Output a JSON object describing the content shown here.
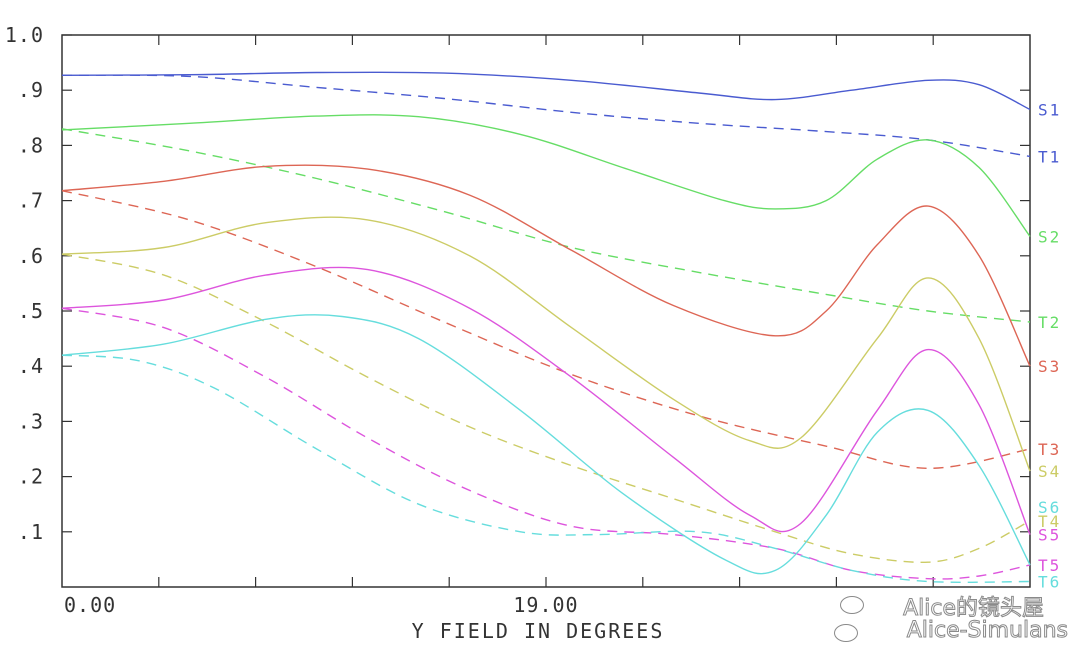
{
  "chart_data": {
    "type": "line",
    "title": "",
    "xlabel": "Y FIELD IN DEGREES",
    "ylabel": "",
    "xlim": [
      0,
      38
    ],
    "ylim": [
      0,
      1.0
    ],
    "x_ticks": [
      0,
      19
    ],
    "x_tick_labels": [
      "0.00",
      "19.00"
    ],
    "y_ticks": [
      0.1,
      0.2,
      0.3,
      0.4,
      0.5,
      0.6,
      0.7,
      0.8,
      0.9,
      1.0
    ],
    "y_tick_labels": [
      ".1",
      ".2",
      ".3",
      ".4",
      ".5",
      ".6",
      ".7",
      ".8",
      ".9",
      "1.0"
    ],
    "grid": false,
    "legend": "right-edge labels",
    "series": [
      {
        "name": "S1",
        "color": "#4a5bd0",
        "dash": false,
        "x": [
          0,
          5,
          10,
          15,
          20,
          25,
          28,
          31,
          34,
          36,
          38
        ],
        "values": [
          0.927,
          0.928,
          0.932,
          0.931,
          0.918,
          0.895,
          0.883,
          0.9,
          0.918,
          0.91,
          0.865
        ]
      },
      {
        "name": "T1",
        "color": "#4a5bd0",
        "dash": true,
        "x": [
          0,
          5,
          10,
          15,
          20,
          25,
          30,
          34,
          38
        ],
        "values": [
          0.927,
          0.925,
          0.905,
          0.885,
          0.86,
          0.84,
          0.825,
          0.81,
          0.78
        ]
      },
      {
        "name": "S2",
        "color": "#66dd66",
        "dash": false,
        "x": [
          0,
          5,
          10,
          14,
          18,
          22,
          26,
          28,
          30,
          32,
          34,
          36,
          38
        ],
        "values": [
          0.828,
          0.84,
          0.853,
          0.852,
          0.82,
          0.76,
          0.7,
          0.685,
          0.7,
          0.775,
          0.81,
          0.76,
          0.635
        ]
      },
      {
        "name": "T2",
        "color": "#66dd66",
        "dash": true,
        "x": [
          0,
          5,
          10,
          15,
          20,
          25,
          30,
          34,
          38
        ],
        "values": [
          0.83,
          0.79,
          0.74,
          0.68,
          0.615,
          0.57,
          0.53,
          0.5,
          0.48
        ]
      },
      {
        "name": "S3",
        "color": "#dd6655",
        "dash": false,
        "x": [
          0,
          4,
          8,
          12,
          16,
          20,
          24,
          28,
          30,
          32,
          34,
          36,
          38
        ],
        "values": [
          0.718,
          0.735,
          0.762,
          0.757,
          0.71,
          0.61,
          0.51,
          0.455,
          0.5,
          0.62,
          0.69,
          0.6,
          0.4
        ]
      },
      {
        "name": "T3",
        "color": "#dd6655",
        "dash": true,
        "x": [
          0,
          5,
          10,
          15,
          20,
          25,
          30,
          34,
          38
        ],
        "values": [
          0.718,
          0.665,
          0.58,
          0.48,
          0.385,
          0.31,
          0.255,
          0.215,
          0.25
        ]
      },
      {
        "name": "S4",
        "color": "#cccc66",
        "dash": false,
        "x": [
          0,
          4,
          8,
          12,
          16,
          20,
          24,
          27,
          29,
          32,
          34,
          36,
          38
        ],
        "values": [
          0.603,
          0.615,
          0.66,
          0.665,
          0.6,
          0.47,
          0.34,
          0.265,
          0.27,
          0.45,
          0.56,
          0.45,
          0.21
        ]
      },
      {
        "name": "T4",
        "color": "#cccc66",
        "dash": true,
        "x": [
          0,
          4,
          8,
          12,
          16,
          20,
          24,
          28,
          31,
          34,
          36,
          38
        ],
        "values": [
          0.603,
          0.565,
          0.48,
          0.38,
          0.29,
          0.22,
          0.16,
          0.1,
          0.06,
          0.045,
          0.07,
          0.12
        ]
      },
      {
        "name": "S5",
        "color": "#dd55dd",
        "dash": false,
        "x": [
          0,
          4,
          8,
          12,
          16,
          20,
          24,
          27,
          29,
          32,
          34,
          36,
          38
        ],
        "values": [
          0.505,
          0.52,
          0.565,
          0.575,
          0.505,
          0.38,
          0.235,
          0.13,
          0.115,
          0.32,
          0.43,
          0.33,
          0.095
        ]
      },
      {
        "name": "T5",
        "color": "#dd55dd",
        "dash": true,
        "x": [
          0,
          4,
          8,
          12,
          16,
          20,
          24,
          28,
          31,
          34,
          36,
          38
        ],
        "values": [
          0.505,
          0.47,
          0.38,
          0.27,
          0.175,
          0.11,
          0.095,
          0.07,
          0.03,
          0.015,
          0.02,
          0.04
        ]
      },
      {
        "name": "S6",
        "color": "#66dddd",
        "dash": false,
        "x": [
          0,
          4,
          8,
          11,
          14,
          18,
          22,
          26,
          28,
          30,
          32,
          34,
          36,
          38
        ],
        "values": [
          0.42,
          0.44,
          0.485,
          0.49,
          0.45,
          0.32,
          0.17,
          0.05,
          0.03,
          0.13,
          0.28,
          0.32,
          0.22,
          0.04
        ]
      },
      {
        "name": "T6",
        "color": "#66dddd",
        "dash": true,
        "x": [
          0,
          3,
          6,
          10,
          14,
          18,
          21,
          25,
          28,
          31,
          34,
          38
        ],
        "values": [
          0.42,
          0.41,
          0.36,
          0.25,
          0.15,
          0.1,
          0.095,
          0.1,
          0.07,
          0.03,
          0.01,
          0.01
        ]
      }
    ],
    "end_labels": [
      {
        "name": "S1",
        "y": 0.865
      },
      {
        "name": "T1",
        "y": 0.78
      },
      {
        "name": "S2",
        "y": 0.635
      },
      {
        "name": "T2",
        "y": 0.48
      },
      {
        "name": "S3",
        "y": 0.4
      },
      {
        "name": "T3",
        "y": 0.25
      },
      {
        "name": "S4",
        "y": 0.21
      },
      {
        "name": "S6",
        "y": 0.145
      },
      {
        "name": "T4",
        "y": 0.12
      },
      {
        "name": "S5",
        "y": 0.095
      },
      {
        "name": "T5",
        "y": 0.04
      },
      {
        "name": "T6",
        "y": 0.01
      }
    ]
  },
  "watermark": {
    "line1": "Alice的镜头屋",
    "line2": "Alice-Simulans"
  }
}
